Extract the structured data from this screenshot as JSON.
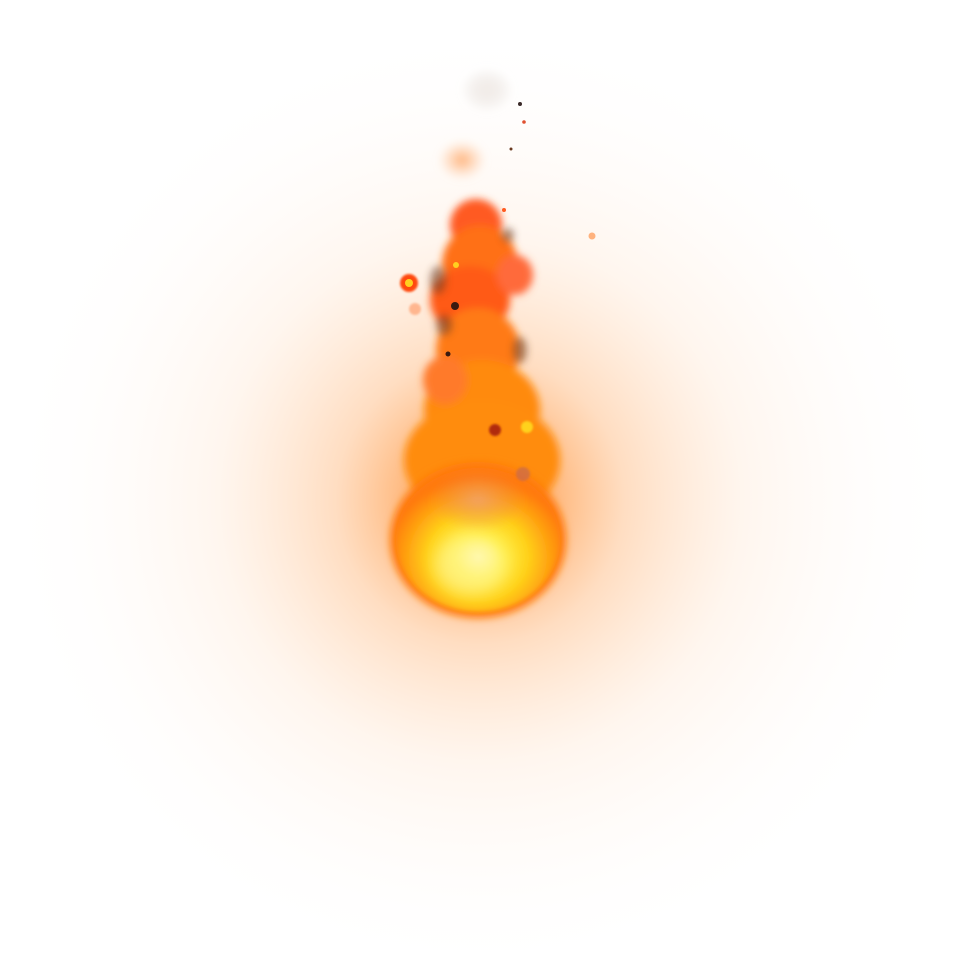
{
  "scene": {
    "subject": "fireball",
    "colors": {
      "background": "#ffffff",
      "glow_outer": "#ffe7d2",
      "glow_mid": "#ffb476",
      "glow_inner": "#ff8a2a",
      "flame_core_yellow": "#fff04a",
      "flame_yellow": "#ffd21a",
      "flame_orange": "#ff8c10",
      "flame_deep_orange": "#ff5a14",
      "flame_red": "#f0461e",
      "smoke_dark": "#6a3a20",
      "smoke_light": "#e0d8d2",
      "ember": "#ff3a10",
      "ember_dark": "#3a1a10"
    }
  }
}
